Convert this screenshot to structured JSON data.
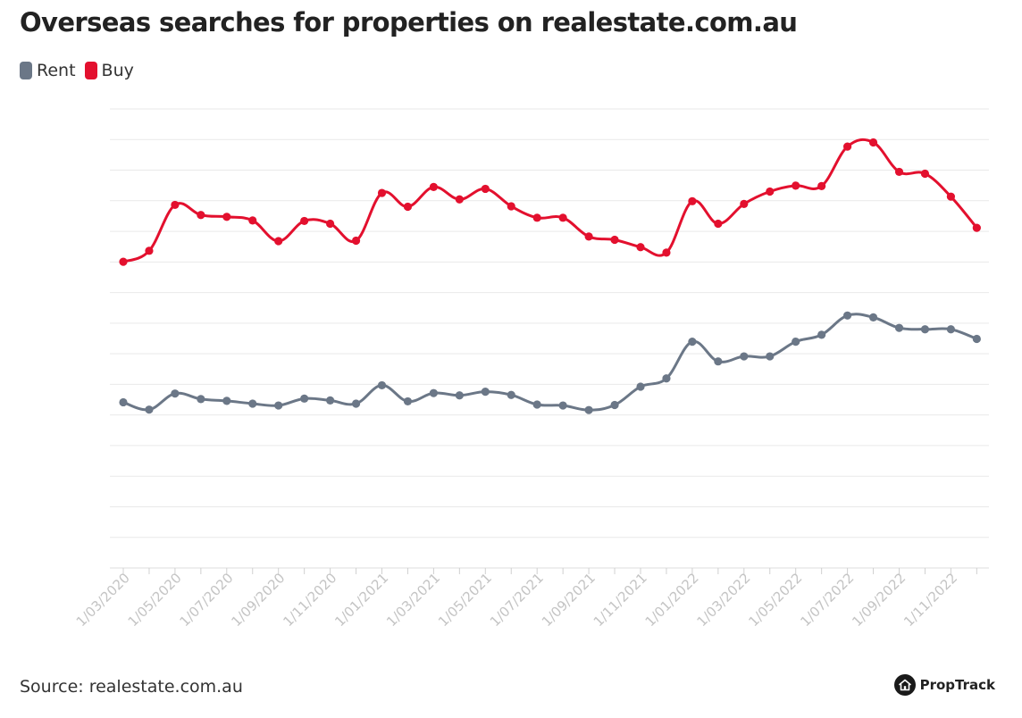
{
  "title": "Overseas searches for properties on realestate.com.au",
  "legend": [
    {
      "label": "Rent",
      "color": "#6b7787"
    },
    {
      "label": "Buy",
      "color": "#e3102e"
    }
  ],
  "source": "Source: realestate.com.au",
  "brand": {
    "name": "PropTrack",
    "icon": "house-icon"
  },
  "chart_data": {
    "type": "line",
    "title": "Overseas searches for properties on realestate.com.au",
    "xlabel": "",
    "ylabel": "",
    "x": [
      "1/03/2020",
      "1/04/2020",
      "1/05/2020",
      "1/06/2020",
      "1/07/2020",
      "1/08/2020",
      "1/09/2020",
      "1/10/2020",
      "1/11/2020",
      "1/12/2020",
      "1/01/2021",
      "1/02/2021",
      "1/03/2021",
      "1/04/2021",
      "1/05/2021",
      "1/06/2021",
      "1/07/2021",
      "1/08/2021",
      "1/09/2021",
      "1/10/2021",
      "1/11/2021",
      "1/12/2021",
      "1/01/2022",
      "1/02/2022",
      "1/03/2022",
      "1/04/2022",
      "1/05/2022",
      "1/06/2022",
      "1/07/2022",
      "1/08/2022",
      "1/09/2022",
      "1/10/2022",
      "1/11/2022",
      "1/12/2022"
    ],
    "x_tick_labels": [
      "1/03/2020",
      "1/05/2020",
      "1/07/2020",
      "1/09/2020",
      "1/11/2020",
      "1/01/2021",
      "1/03/2021",
      "1/05/2021",
      "1/07/2021",
      "1/09/2021",
      "1/11/2021",
      "1/01/2022",
      "1/03/2022",
      "1/05/2022",
      "1/07/2022",
      "1/09/2022",
      "1/11/2022"
    ],
    "y_ticks_shown": false,
    "grid": true,
    "legend_position": "top-left",
    "series": [
      {
        "name": "Rent",
        "color": "#6b7787",
        "values": [
          36.1,
          34.5,
          38.0,
          36.8,
          36.4,
          35.8,
          35.4,
          36.9,
          36.5,
          35.8,
          39.8,
          36.3,
          38.1,
          37.6,
          38.4,
          37.7,
          35.6,
          35.4,
          34.4,
          35.5,
          39.5,
          41.3,
          49.3,
          45.0,
          46.1,
          46.1,
          49.3,
          50.8,
          55.0,
          54.6,
          52.3,
          52.0,
          52.0,
          49.9
        ]
      },
      {
        "name": "Buy",
        "color": "#e3102e",
        "values": [
          66.7,
          69.1,
          79.1,
          76.9,
          76.5,
          75.7,
          71.2,
          75.6,
          75.0,
          71.3,
          81.7,
          78.7,
          83.0,
          80.3,
          82.6,
          78.8,
          76.3,
          76.3,
          72.2,
          71.5,
          69.9,
          68.7,
          79.9,
          75.0,
          79.3,
          82.0,
          83.3,
          83.2,
          91.8,
          92.7,
          86.3,
          85.9,
          80.9,
          74.1
        ]
      }
    ]
  }
}
